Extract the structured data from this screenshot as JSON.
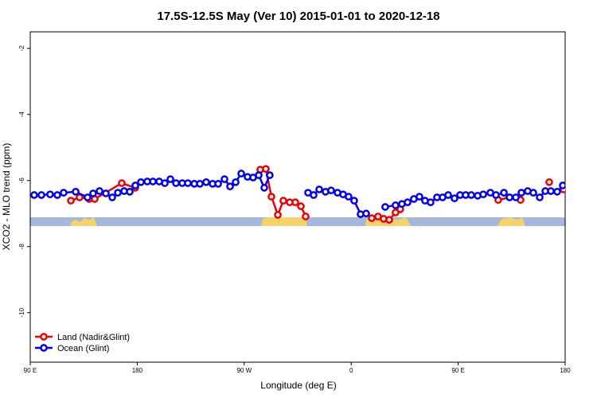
{
  "chart_data": {
    "type": "line",
    "title": "17.5S-12.5S May (Ver 10)   2015-01-01 to 2020-12-18",
    "x_label": "Longitude (deg E)",
    "y_label": "XCO2 - MLO trend (ppm)",
    "xlim": [
      90,
      540
    ],
    "xticks": [
      {
        "value": 90,
        "label": "90 E"
      },
      {
        "value": 180,
        "label": "180"
      },
      {
        "value": 270,
        "label": "90 W"
      },
      {
        "value": 360,
        "label": "0"
      },
      {
        "value": 450,
        "label": "90 E"
      },
      {
        "value": 540,
        "label": "180"
      }
    ],
    "ylim": [
      -11.5,
      -1.5
    ],
    "yticks": [
      -2,
      -4,
      -6,
      -8,
      -10
    ],
    "legend": "bottom-left",
    "series": [
      {
        "name": "Land (Nadir&Glint)",
        "color": "#ee0000",
        "x": [
          124.2,
          131.5,
          139.6,
          144.2,
          167.0,
          178.4,
          null,
          283.5,
          288.2,
          292.9,
          298.3,
          302.9,
          308.3,
          313.0,
          317.7,
          321.7,
          null,
          377.3,
          382.6,
          387.3,
          392.0,
          397.3,
          401.3,
          null,
          483.7,
          493.2,
          502.5,
          null,
          526.6,
          null,
          538.6
        ],
        "values": [
          -6.61,
          -6.51,
          -6.56,
          -6.56,
          -6.08,
          -6.22,
          null,
          -5.67,
          -5.65,
          -6.49,
          -7.04,
          -6.61,
          -6.66,
          -6.66,
          -6.78,
          -7.09,
          null,
          -7.14,
          -7.09,
          -7.16,
          -7.19,
          -6.97,
          -6.87,
          null,
          -6.59,
          -6.51,
          -6.59,
          null,
          -6.05,
          null,
          -6.27
        ]
      },
      {
        "name": "Ocean (Glint)",
        "color": "#0000ee",
        "x": [
          93.3,
          99.4,
          106.7,
          112.8,
          118.1,
          128.2,
          138.2,
          142.9,
          148.3,
          153.6,
          159.0,
          163.7,
          169.0,
          173.7,
          178.4,
          183.1,
          188.5,
          193.2,
          198.5,
          203.2,
          207.9,
          212.6,
          217.9,
          222.6,
          228.0,
          232.7,
          238.0,
          243.4,
          248.1,
          253.4,
          258.1,
          262.8,
          267.5,
          272.8,
          277.5,
          282.2,
          286.9,
          291.5,
          null,
          323.7,
          328.4,
          333.1,
          338.4,
          343.1,
          348.5,
          353.2,
          357.8,
          362.5,
          367.9,
          372.6,
          null,
          388.6,
          397.3,
          402.7,
          407.4,
          412.7,
          417.4,
          422.1,
          426.8,
          432.2,
          436.9,
          441.6,
          446.9,
          451.6,
          456.3,
          461.0,
          466.4,
          471.1,
          477.1,
          481.8,
          488.5,
          493.2,
          498.5,
          503.2,
          508.5,
          513.2,
          518.6,
          523.3,
          528.0,
          533.3,
          538.0
        ],
        "values": [
          -6.44,
          -6.44,
          -6.42,
          -6.44,
          -6.37,
          -6.34,
          -6.51,
          -6.39,
          -6.32,
          -6.39,
          -6.51,
          -6.37,
          -6.32,
          -6.34,
          -6.15,
          -6.05,
          -6.03,
          -6.03,
          -6.03,
          -6.08,
          -5.96,
          -6.08,
          -6.08,
          -6.08,
          -6.1,
          -6.1,
          -6.05,
          -6.1,
          -6.1,
          -5.96,
          -6.18,
          -6.05,
          -5.79,
          -5.89,
          -5.91,
          -5.84,
          -6.22,
          -5.84,
          null,
          -6.37,
          -6.44,
          -6.27,
          -6.34,
          -6.3,
          -6.37,
          -6.42,
          -6.49,
          -6.61,
          -7.02,
          -7.0,
          null,
          -6.8,
          -6.75,
          -6.71,
          -6.66,
          -6.56,
          -6.49,
          -6.61,
          -6.66,
          -6.51,
          -6.51,
          -6.44,
          -6.54,
          -6.44,
          -6.44,
          -6.44,
          -6.46,
          -6.42,
          -6.37,
          -6.44,
          -6.37,
          -6.51,
          -6.51,
          -6.37,
          -6.32,
          -6.37,
          -6.51,
          -6.32,
          -6.32,
          -6.34,
          -6.15
        ]
      }
    ]
  }
}
